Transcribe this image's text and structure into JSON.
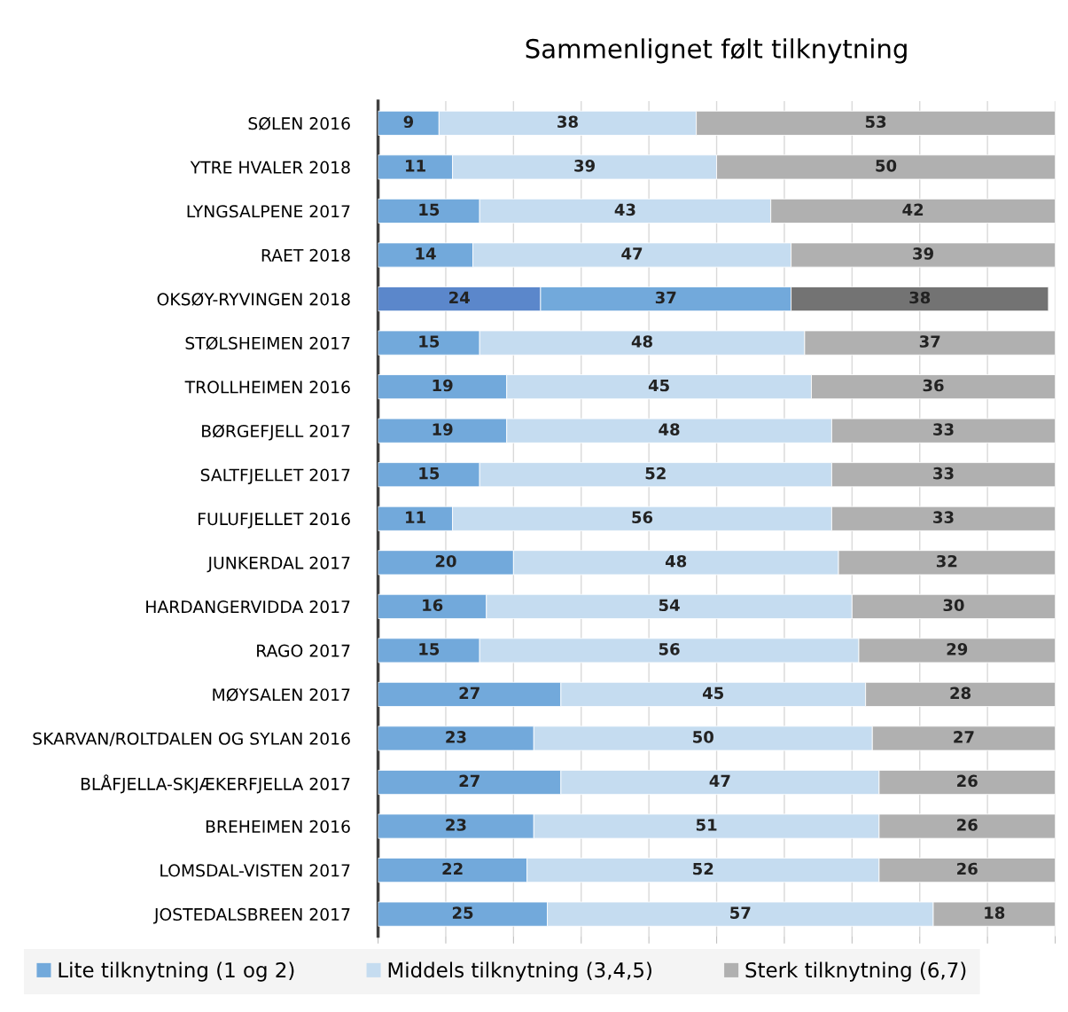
{
  "chart_data": {
    "type": "bar",
    "orientation": "horizontal",
    "stacked": true,
    "title": "Sammenlignet følt tilknytning",
    "categories": [
      "SØLEN 2016",
      "YTRE HVALER 2018",
      "LYNGSALPENE 2017",
      "RAET 2018",
      "OKSØY-RYVINGEN 2018",
      "STØLSHEIMEN 2017",
      "TROLLHEIMEN 2016",
      "BØRGEFJELL 2017",
      "SALTFJELLET 2017",
      "FULUFJELLET 2016",
      "JUNKERDAL 2017",
      "HARDANGERVIDDA 2017",
      "RAGO 2017",
      "MØYSALEN 2017",
      "SKARVAN/ROLTDALEN OG SYLAN 2016",
      "BLÅFJELLA-SKJÆKERFJELLA 2017",
      "BREHEIMEN 2016",
      "LOMSDAL-VISTEN 2017",
      "JOSTEDALSBREEN 2017"
    ],
    "series": [
      {
        "name": "Lite tilknytning (1 og 2)",
        "color": "#72a9db",
        "colors": [
          "#72a9db",
          "#72a9db",
          "#72a9db",
          "#72a9db",
          "#5b87cb",
          "#72a9db",
          "#72a9db",
          "#72a9db",
          "#72a9db",
          "#72a9db",
          "#72a9db",
          "#72a9db",
          "#72a9db",
          "#72a9db",
          "#72a9db",
          "#72a9db",
          "#72a9db",
          "#72a9db",
          "#72a9db"
        ],
        "values": [
          9,
          11,
          15,
          14,
          24,
          15,
          19,
          19,
          15,
          11,
          20,
          16,
          15,
          27,
          23,
          27,
          23,
          22,
          25
        ]
      },
      {
        "name": "Middels tilknytning (3,4,5)",
        "color": "#c5dcf0",
        "colors": [
          "#c5dcf0",
          "#c5dcf0",
          "#c5dcf0",
          "#c5dcf0",
          "#72a9db",
          "#c5dcf0",
          "#c5dcf0",
          "#c5dcf0",
          "#c5dcf0",
          "#c5dcf0",
          "#c5dcf0",
          "#c5dcf0",
          "#c5dcf0",
          "#c5dcf0",
          "#c5dcf0",
          "#c5dcf0",
          "#c5dcf0",
          "#c5dcf0",
          "#c5dcf0"
        ],
        "values": [
          38,
          39,
          43,
          47,
          37,
          48,
          45,
          48,
          52,
          56,
          48,
          54,
          56,
          45,
          50,
          47,
          51,
          52,
          57
        ]
      },
      {
        "name": "Sterk tilknytning (6,7)",
        "color": "#b0b0b0",
        "colors": [
          "#b0b0b0",
          "#b0b0b0",
          "#b0b0b0",
          "#b0b0b0",
          "#737373",
          "#b0b0b0",
          "#b0b0b0",
          "#b0b0b0",
          "#b0b0b0",
          "#b0b0b0",
          "#b0b0b0",
          "#b0b0b0",
          "#b0b0b0",
          "#b0b0b0",
          "#b0b0b0",
          "#b0b0b0",
          "#b0b0b0",
          "#b0b0b0",
          "#b0b0b0"
        ],
        "values": [
          53,
          50,
          42,
          39,
          38,
          37,
          36,
          33,
          33,
          33,
          32,
          30,
          29,
          28,
          27,
          26,
          26,
          26,
          18
        ]
      }
    ],
    "xlim": [
      0,
      100
    ],
    "xticks": [
      {
        "value": 0,
        "label": null
      },
      {
        "value": 10,
        "label": null
      },
      {
        "value": 20,
        "label": null
      },
      {
        "value": 30,
        "label": null
      },
      {
        "value": 40,
        "label": null
      },
      {
        "value": 50,
        "label": null
      },
      {
        "value": 60,
        "label": null
      },
      {
        "value": 70,
        "label": null
      },
      {
        "value": 80,
        "label": null
      },
      {
        "value": 90,
        "label": null
      },
      {
        "value": 100,
        "label": null
      }
    ],
    "tick_labels": "y",
    "grid": "x",
    "data_labels": true,
    "legend": "bottom"
  }
}
